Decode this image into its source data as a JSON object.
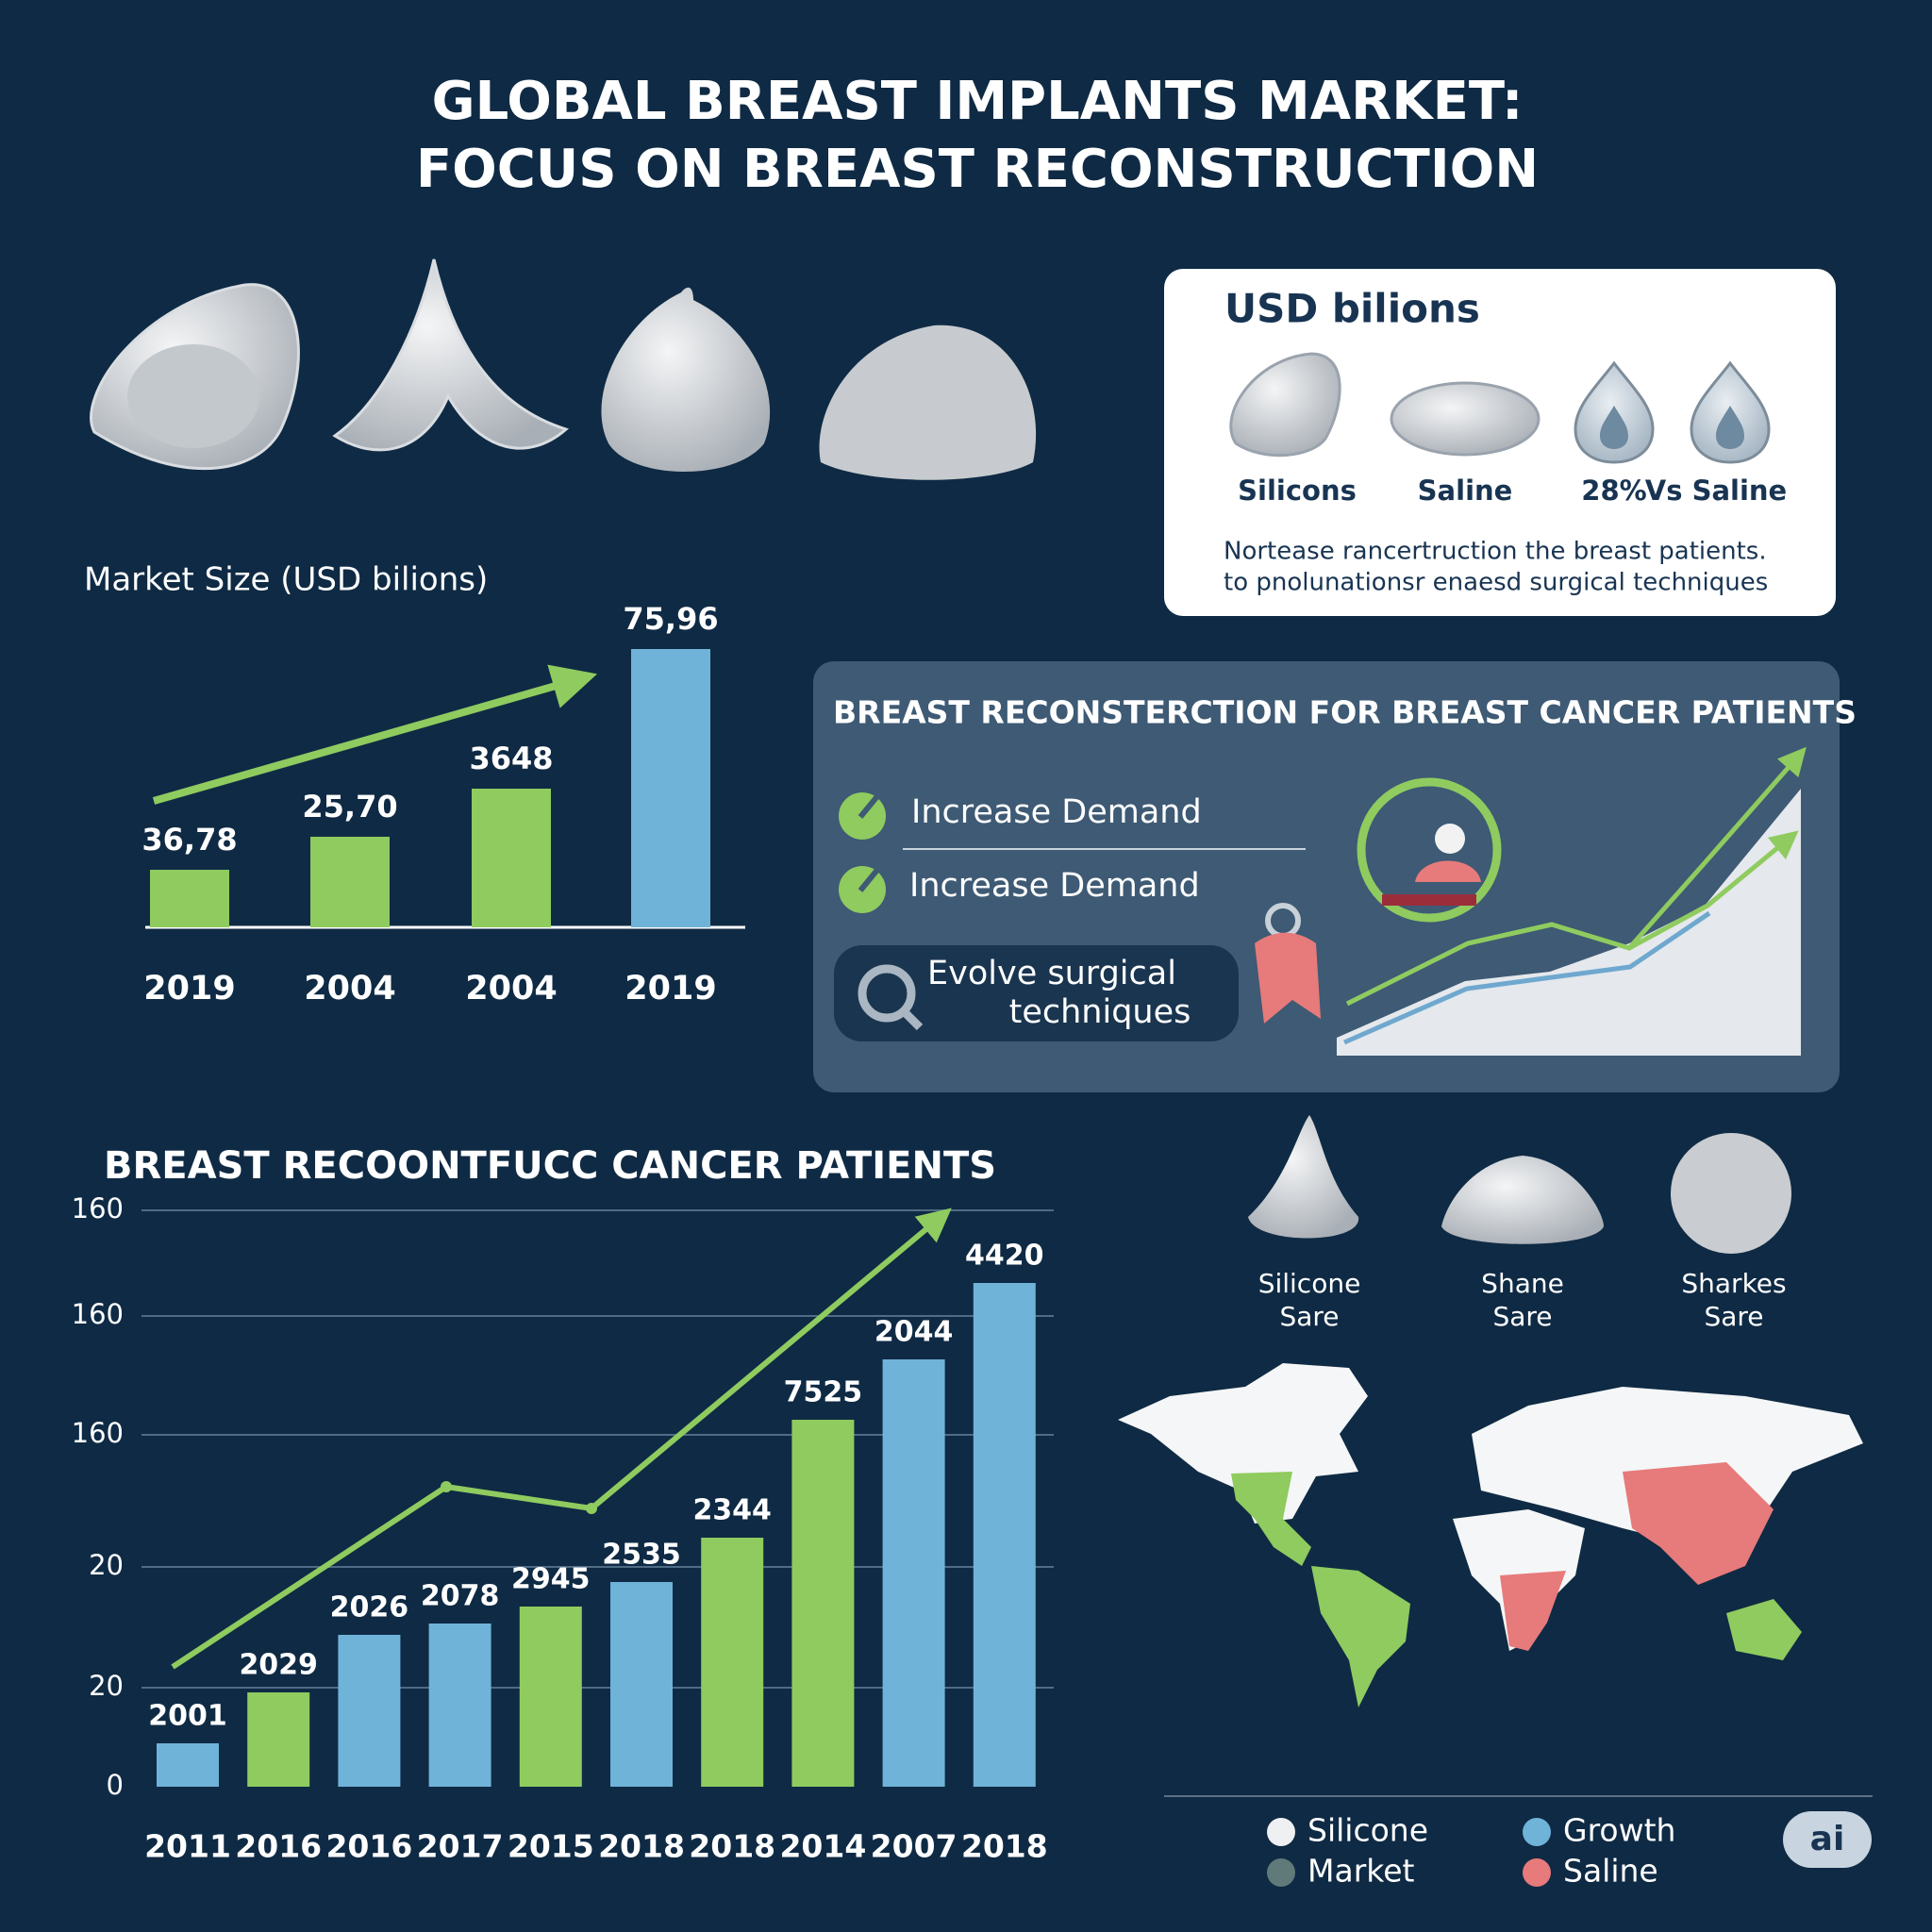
{
  "title": {
    "line1": "GLOBAL BREAST IMPLANTS MARKET:",
    "line2": "FOCUS ON BREAST RECONSTRUCTION"
  },
  "card": {
    "title": "USD bilions",
    "labels": [
      "Silicons",
      "Saline",
      "28%",
      "Vs Saline"
    ],
    "note": [
      "Nortease rancertruction the breast patients.",
      "to pnolunationsr enaesd surgical techniques"
    ]
  },
  "market_chart": {
    "label": "Market Size (USD bilions)",
    "bars": [
      {
        "value_label": "36,78",
        "year": "2019"
      },
      {
        "value_label": "25,70",
        "year": "2004"
      },
      {
        "value_label": "3648",
        "year": "2004"
      },
      {
        "value_label": "75,96",
        "year": "2019"
      }
    ]
  },
  "panel": {
    "title": "BREAST RECONSTERCTION FOR BREAST CANCER PATIENTS",
    "items": [
      "Increase Demand",
      "Increase Demand"
    ],
    "pill": [
      "Evolve surgical",
      "techniques"
    ]
  },
  "history_chart": {
    "title": "BREAST RECOONTFUCC CANCER PATIENTS",
    "yticks": [
      "160",
      "160",
      "160",
      "20",
      "20",
      "0"
    ],
    "bars": [
      {
        "value_label": "2001",
        "year": "2011"
      },
      {
        "value_label": "2029",
        "year": "2016"
      },
      {
        "value_label": "2026",
        "year": "2016"
      },
      {
        "value_label": "2078",
        "year": "2017"
      },
      {
        "value_label": "2945",
        "year": "2015"
      },
      {
        "value_label": "2535",
        "year": "2018"
      },
      {
        "value_label": "2344",
        "year": "2018"
      },
      {
        "value_label": "7525",
        "year": "2014"
      },
      {
        "value_label": "2044",
        "year": "2007"
      },
      {
        "value_label": "4420",
        "year": "2018"
      }
    ]
  },
  "implants": [
    {
      "name": "Silicone",
      "sub": "Sare"
    },
    {
      "name": "Shane",
      "sub": "Sare"
    },
    {
      "name": "Sharkes",
      "sub": "Sare"
    }
  ],
  "legend": [
    "Silicone",
    "Market",
    "Growth",
    "Saline"
  ],
  "badge": "ai"
}
